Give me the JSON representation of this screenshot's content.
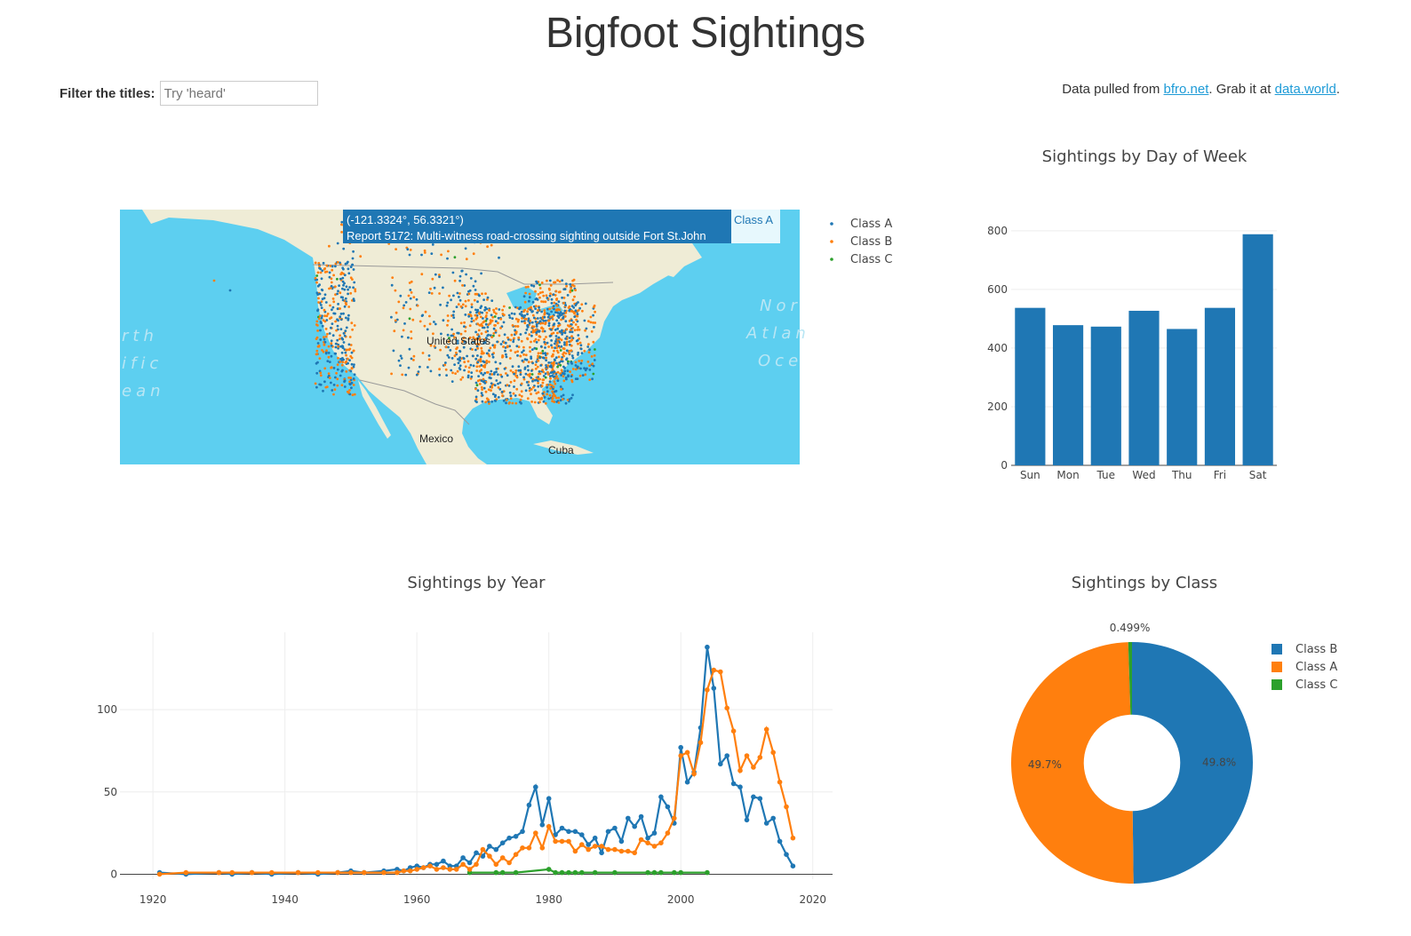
{
  "page": {
    "title": "Bigfoot Sightings",
    "filter_label": "Filter the titles:",
    "filter_placeholder": "Try 'heard'",
    "credits_prefix": "Data pulled from ",
    "credits_link1": "bfro.net",
    "credits_middle": ". Grab it at ",
    "credits_link2": "data.world",
    "credits_suffix": "."
  },
  "map": {
    "tooltip_coords": "(-121.3324°, 56.3321°)",
    "tooltip_text": "Report 5172: Multi-witness road-crossing sighting outside Fort St.John",
    "tooltip_class": "Class A",
    "labels": [
      "United States",
      "Mexico",
      "Cuba"
    ],
    "ocean_left": [
      "rth",
      "ific",
      "ean"
    ],
    "ocean_right": [
      "Nor",
      "Atlan",
      "Oce"
    ],
    "legend": [
      "Class A",
      "Class B",
      "Class C"
    ]
  },
  "colors": {
    "class_a": "#1f77b4",
    "class_b": "#ff7f0e",
    "class_c": "#2ca02c",
    "ocean": "#5dcff0",
    "land": "#efecd6"
  },
  "chart_data": [
    {
      "id": "day",
      "type": "bar",
      "title": "Sightings by Day of Week",
      "categories": [
        "Sun",
        "Mon",
        "Tue",
        "Wed",
        "Thu",
        "Fri",
        "Sat"
      ],
      "values": [
        537,
        478,
        473,
        527,
        465,
        537,
        788
      ],
      "ylim": [
        0,
        860
      ],
      "yticks": [
        0,
        200,
        400,
        600,
        800
      ]
    },
    {
      "id": "year",
      "type": "line",
      "title": "Sightings by Year",
      "xlim": [
        1915,
        2023
      ],
      "ylim": [
        -3,
        147
      ],
      "xticks": [
        1920,
        1940,
        1960,
        1980,
        2000,
        2020
      ],
      "yticks": [
        0,
        50,
        100
      ],
      "series": [
        {
          "key": "a",
          "x": [
            1921,
            1925,
            1930,
            1932,
            1935,
            1938,
            1942,
            1945,
            1948,
            1950,
            1952,
            1955,
            1957,
            1958,
            1959,
            1960,
            1961,
            1962,
            1963,
            1964,
            1965,
            1966,
            1967,
            1968,
            1969,
            1970,
            1971,
            1972,
            1973,
            1974,
            1975,
            1976,
            1977,
            1978,
            1979,
            1980,
            1981,
            1982,
            1983,
            1984,
            1985,
            1986,
            1987,
            1988,
            1989,
            1990,
            1991,
            1992,
            1993,
            1994,
            1995,
            1996,
            1997,
            1998,
            1999,
            2000,
            2001,
            2002,
            2003,
            2004,
            2005,
            2006,
            2007,
            2008,
            2009,
            2010,
            2011,
            2012,
            2013,
            2014,
            2015,
            2016,
            2017
          ],
          "y": [
            1,
            0,
            1,
            0,
            1,
            0,
            1,
            0,
            1,
            2,
            1,
            2,
            3,
            2,
            4,
            5,
            4,
            6,
            6,
            8,
            5,
            5,
            10,
            7,
            13,
            11,
            17,
            15,
            19,
            22,
            23,
            26,
            42,
            53,
            30,
            46,
            24,
            28,
            26,
            26,
            24,
            18,
            22,
            13,
            26,
            28,
            20,
            34,
            29,
            35,
            22,
            25,
            47,
            41,
            31,
            77,
            56,
            62,
            89,
            138,
            113,
            67,
            72,
            55,
            53,
            33,
            47,
            46,
            31,
            34,
            20,
            12,
            5
          ]
        },
        {
          "key": "b",
          "x": [
            1921,
            1925,
            1930,
            1932,
            1935,
            1938,
            1942,
            1945,
            1948,
            1950,
            1952,
            1955,
            1957,
            1958,
            1959,
            1960,
            1961,
            1962,
            1963,
            1964,
            1965,
            1966,
            1967,
            1968,
            1969,
            1970,
            1971,
            1972,
            1973,
            1974,
            1975,
            1976,
            1977,
            1978,
            1979,
            1980,
            1981,
            1982,
            1983,
            1984,
            1985,
            1986,
            1987,
            1988,
            1989,
            1990,
            1991,
            1992,
            1993,
            1994,
            1995,
            1996,
            1997,
            1998,
            1999,
            2000,
            2001,
            2002,
            2003,
            2004,
            2005,
            2006,
            2007,
            2008,
            2009,
            2010,
            2011,
            2012,
            2013,
            2014,
            2015,
            2016,
            2017
          ],
          "y": [
            0,
            1,
            1,
            1,
            1,
            1,
            1,
            1,
            1,
            1,
            1,
            1,
            1,
            2,
            2,
            3,
            4,
            5,
            3,
            4,
            3,
            3,
            6,
            3,
            6,
            15,
            11,
            6,
            10,
            7,
            12,
            16,
            16,
            25,
            16,
            29,
            20,
            20,
            20,
            14,
            18,
            15,
            17,
            17,
            15,
            15,
            14,
            14,
            13,
            21,
            19,
            17,
            19,
            25,
            34,
            72,
            74,
            61,
            80,
            112,
            124,
            123,
            101,
            87,
            63,
            72,
            65,
            71,
            88,
            74,
            56,
            41,
            22
          ]
        },
        {
          "key": "c",
          "x": [
            1968,
            1972,
            1973,
            1975,
            1980,
            1981,
            1982,
            1983,
            1984,
            1985,
            1987,
            1990,
            1995,
            1996,
            1997,
            1999,
            2000,
            2004
          ],
          "y": [
            1,
            1,
            1,
            1,
            3,
            1,
            1,
            1,
            1,
            1,
            1,
            1,
            1,
            1,
            1,
            1,
            1,
            1
          ]
        }
      ]
    },
    {
      "id": "class",
      "type": "pie",
      "title": "Sightings by Class",
      "labels": [
        "Class B",
        "Class A",
        "Class C"
      ],
      "values": [
        49.8,
        49.7,
        0.499
      ],
      "value_labels": [
        "49.8%",
        "49.7%",
        "0.499%"
      ],
      "hole": 0.38
    }
  ]
}
